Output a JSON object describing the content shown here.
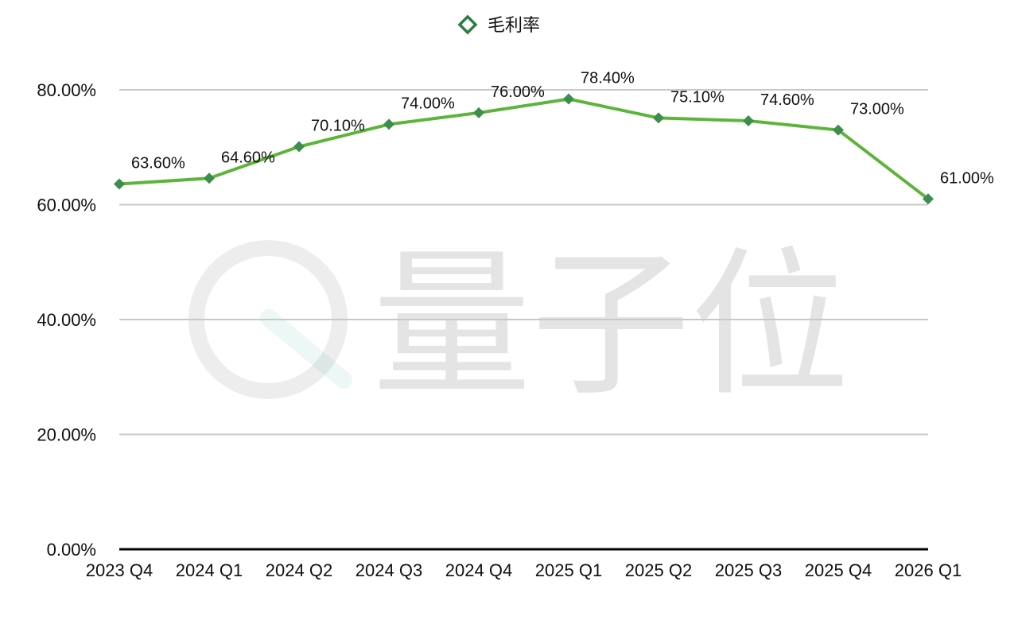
{
  "legend": {
    "label": "毛利率"
  },
  "watermark": {
    "text": "量子位"
  },
  "colors": {
    "line": "#5cb53a",
    "marker": "#3d8d4e",
    "legend_marker": "#2e7d3e",
    "grid": "#c8c8c8",
    "baseline": "#000000"
  },
  "chart_data": {
    "type": "line",
    "categories": [
      "2023 Q4",
      "2024 Q1",
      "2024 Q2",
      "2024 Q3",
      "2024 Q4",
      "2025 Q1",
      "2025 Q2",
      "2025 Q3",
      "2025 Q4",
      "2026 Q1"
    ],
    "series": [
      {
        "name": "毛利率",
        "values": [
          63.6,
          64.6,
          70.1,
          74.0,
          76.0,
          78.4,
          75.1,
          74.6,
          73.0,
          61.0
        ],
        "labels": [
          "63.60%",
          "64.60%",
          "70.10%",
          "74.00%",
          "76.00%",
          "78.40%",
          "75.10%",
          "74.60%",
          "73.00%",
          "61.00%"
        ]
      }
    ],
    "ylim": [
      0,
      80
    ],
    "yticks": [
      0,
      20,
      40,
      60,
      80
    ],
    "ytick_labels": [
      "0.00%",
      "20.00%",
      "40.00%",
      "60.00%",
      "80.00%"
    ],
    "grid": true,
    "legend_position": "top-center",
    "marker": "diamond"
  }
}
